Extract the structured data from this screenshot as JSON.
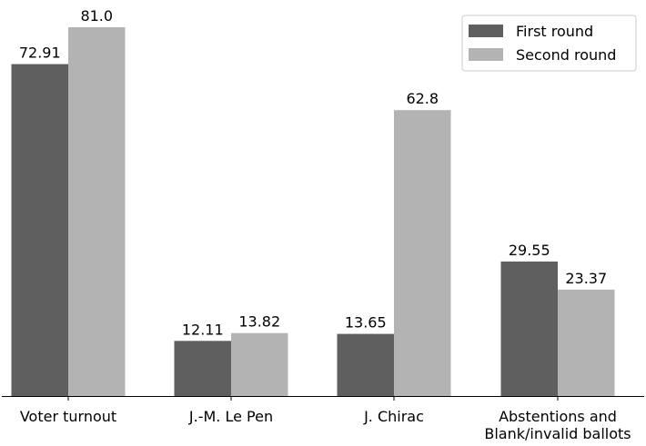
{
  "chart_data": {
    "type": "bar",
    "categories": [
      "Voter turnout",
      "J.-M. Le Pen",
      "J. Chirac",
      "Abstentions and\nBlank/invalid ballots"
    ],
    "series": [
      {
        "name": "First round",
        "values": [
          72.91,
          12.11,
          13.65,
          29.55
        ],
        "labels": [
          "72.91",
          "12.11",
          "13.65",
          "29.55"
        ],
        "color": "#5f5f5f"
      },
      {
        "name": "Second round",
        "values": [
          81.0,
          13.82,
          62.8,
          23.37
        ],
        "labels": [
          "81.0",
          "13.82",
          "62.8",
          "23.37"
        ],
        "color": "#b3b3b3"
      }
    ],
    "ylim": [
      0,
      81.0
    ],
    "y_axis_visible": false,
    "grid": false,
    "legend": "top-right"
  }
}
